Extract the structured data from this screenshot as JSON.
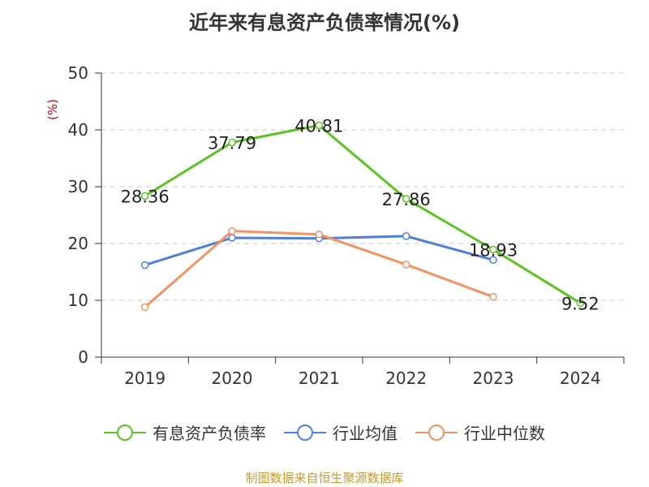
{
  "title": "近年来有息资产负债率情况(%)",
  "source": "制图数据来自恒生聚源数据库",
  "chart_data": {
    "type": "line",
    "title": "近年来有息资产负债率情况(%)",
    "ylabel": "(%)",
    "xlabel": "",
    "categories": [
      "2019",
      "2020",
      "2021",
      "2022",
      "2023",
      "2024"
    ],
    "ylim": [
      0,
      50
    ],
    "yticks": [
      0,
      10,
      20,
      30,
      40,
      50
    ],
    "grid": true,
    "legend_position": "bottom",
    "series": [
      {
        "name": "有息资产负债率",
        "color": "#5ac422",
        "values": [
          28.36,
          37.79,
          40.81,
          27.86,
          18.93,
          9.52
        ],
        "labels": [
          "28.36",
          "37.79",
          "40.81",
          "27.86",
          "18.93",
          "9.52"
        ]
      },
      {
        "name": "行业均值",
        "color": "#4f7fdc",
        "values": [
          16.2,
          21.0,
          20.9,
          21.3,
          17.1,
          null
        ]
      },
      {
        "name": "行业中位数",
        "color": "#f59262",
        "values": [
          8.8,
          22.2,
          21.6,
          16.3,
          10.6,
          null
        ]
      }
    ]
  }
}
